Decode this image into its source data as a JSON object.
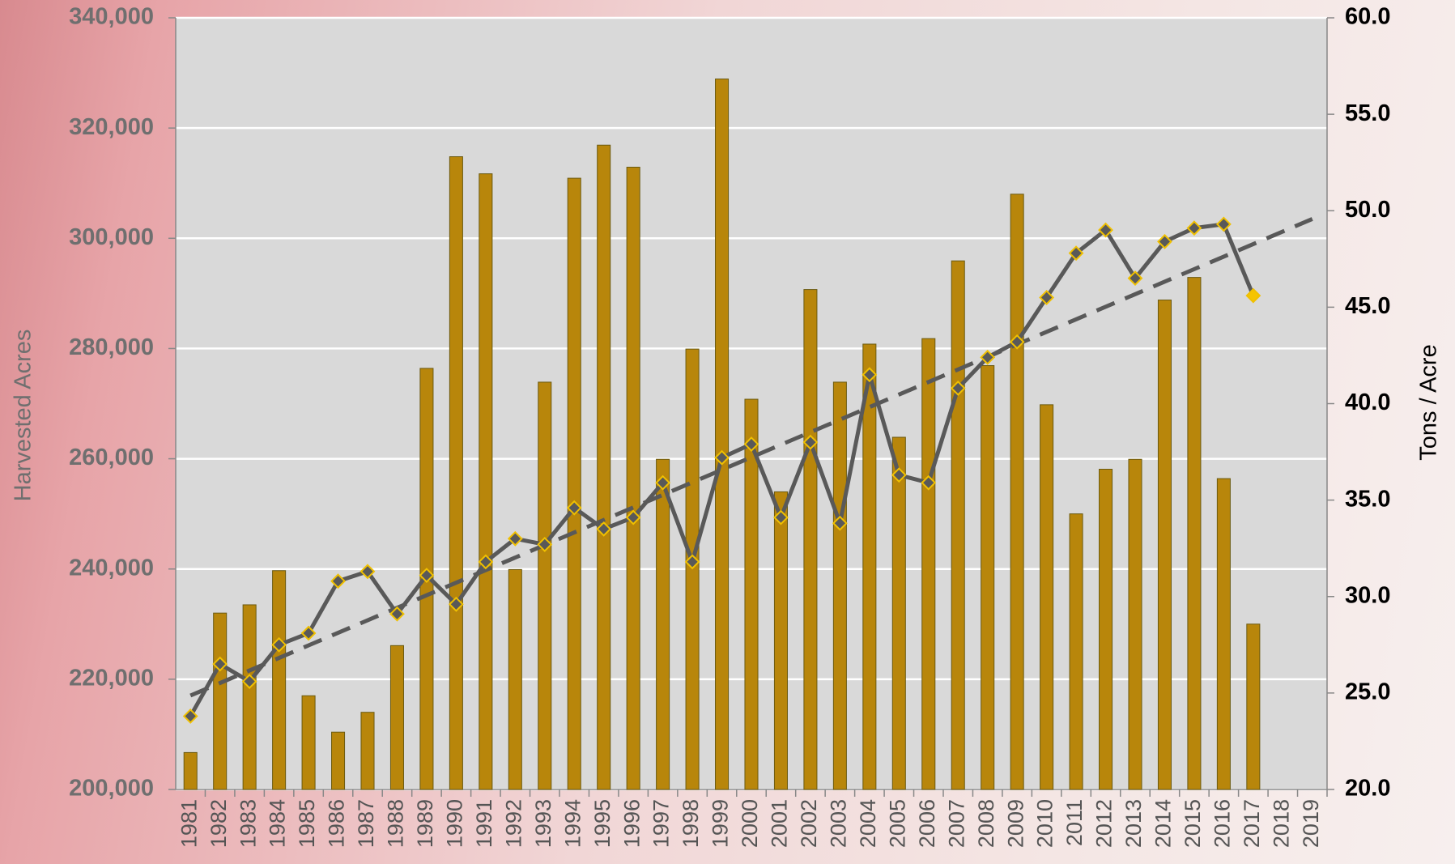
{
  "chart_data": {
    "type": "bar",
    "y_label": "Harvested Acres",
    "y2_label": "Tons / Acre",
    "categories": [
      "1981",
      "1982",
      "1983",
      "1984",
      "1985",
      "1986",
      "1987",
      "1988",
      "1989",
      "1990",
      "1991",
      "1992",
      "1993",
      "1994",
      "1995",
      "1996",
      "1997",
      "1998",
      "1999",
      "2000",
      "2001",
      "2002",
      "2003",
      "2004",
      "2005",
      "2006",
      "2007",
      "2008",
      "2009",
      "2010",
      "2011",
      "2012",
      "2013",
      "2014",
      "2015",
      "2016",
      "2017",
      "2018",
      "2019"
    ],
    "series": [
      {
        "type": "bar",
        "color": "#b8860b",
        "edge_color": "#6b5a10",
        "values": [
          206700,
          232000,
          233500,
          239700,
          217000,
          210400,
          214000,
          226100,
          276400,
          314800,
          311700,
          239900,
          273900,
          310900,
          316900,
          312900,
          259900,
          279900,
          328900,
          270800,
          254000,
          290700,
          273900,
          280800,
          263900,
          281800,
          295900,
          276900,
          308000,
          269800,
          250000,
          258100,
          259900,
          288800,
          292900,
          256400,
          230000,
          null,
          null
        ]
      },
      {
        "type": "line",
        "axis": "y2",
        "color": "#595959",
        "marker_color": "#595959",
        "marker_edge": "#f0c000",
        "last_marker_color": "#f5c400",
        "trendline": true,
        "trend_color": "#595959",
        "values": [
          23.8,
          26.5,
          25.6,
          27.5,
          28.1,
          30.8,
          31.3,
          29.1,
          31.1,
          29.6,
          31.8,
          33.0,
          32.7,
          34.6,
          33.5,
          34.1,
          35.9,
          31.8,
          37.2,
          37.9,
          34.1,
          38.0,
          33.8,
          41.5,
          36.3,
          35.9,
          40.8,
          42.4,
          43.2,
          45.5,
          47.8,
          49.0,
          46.5,
          48.4,
          49.1,
          49.3,
          45.6,
          null,
          null
        ]
      }
    ],
    "ylim": [
      200000,
      340000
    ],
    "yticks": [
      {
        "value": 200000,
        "label": "200,000"
      },
      {
        "value": 220000,
        "label": "220,000"
      },
      {
        "value": 240000,
        "label": "240,000"
      },
      {
        "value": 260000,
        "label": "260,000"
      },
      {
        "value": 280000,
        "label": "280,000"
      },
      {
        "value": 300000,
        "label": "300,000"
      },
      {
        "value": 320000,
        "label": "320,000"
      },
      {
        "value": 340000,
        "label": "340,000"
      }
    ],
    "y2lim": [
      20,
      60
    ],
    "y2ticks": [
      {
        "value": 20,
        "label": "20.0"
      },
      {
        "value": 25,
        "label": "25.0"
      },
      {
        "value": 30,
        "label": "30.0"
      },
      {
        "value": 35,
        "label": "35.0"
      },
      {
        "value": 40,
        "label": "40.0"
      },
      {
        "value": 45,
        "label": "45.0"
      },
      {
        "value": 50,
        "label": "50.0"
      },
      {
        "value": 55,
        "label": "55.0"
      },
      {
        "value": 60,
        "label": "60.0"
      }
    ],
    "grid": true,
    "plot_background": "#d9d9d9"
  }
}
